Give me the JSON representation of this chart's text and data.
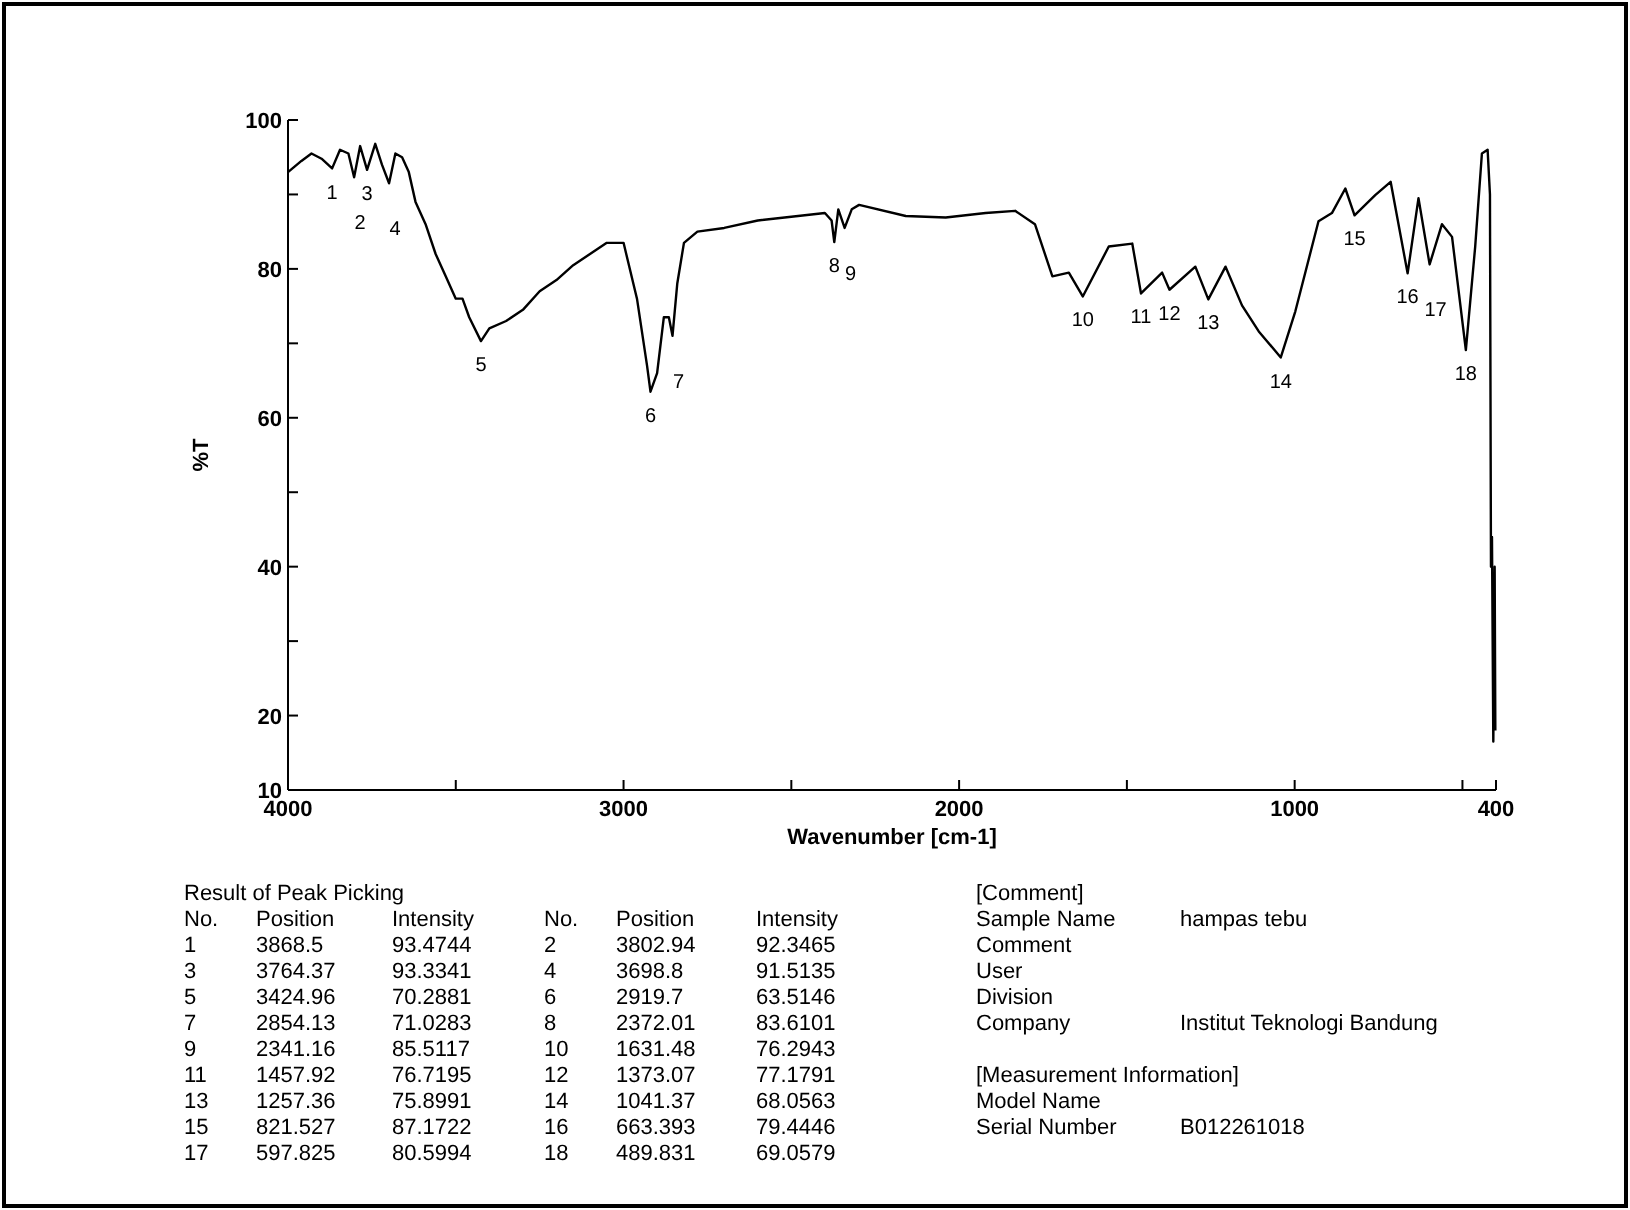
{
  "chart_data": {
    "type": "line",
    "xlabel": "Wavenumber [cm-1]",
    "ylabel": "%T",
    "xlim": [
      4000,
      400
    ],
    "ylim": [
      10,
      100
    ],
    "xticks": [
      4000,
      {
        "value": 3500,
        "label": null
      },
      3000,
      {
        "value": 2500,
        "label": null
      },
      2000,
      {
        "value": 1500,
        "label": null
      },
      1000,
      {
        "value": 500,
        "label": null
      },
      400
    ],
    "yticks": [
      10,
      20,
      {
        "value": 30,
        "label": null
      },
      40,
      {
        "value": 50,
        "label": null
      },
      60,
      {
        "value": 70,
        "label": null
      },
      80,
      {
        "value": 90,
        "label": null
      },
      100
    ],
    "grid": false,
    "marker": "none",
    "line_style": "solid",
    "series": [
      {
        "color": "#000000",
        "x": [
          4000,
          3960,
          3930,
          3900,
          3868.5,
          3845,
          3820,
          3802.94,
          3785,
          3764.37,
          3740,
          3720,
          3698.8,
          3680,
          3660,
          3640,
          3620,
          3590,
          3560,
          3530,
          3500,
          3480,
          3460,
          3424.96,
          3400,
          3350,
          3300,
          3250,
          3200,
          3150,
          3100,
          3050,
          3000,
          2960,
          2930,
          2919.7,
          2900,
          2880,
          2865,
          2854.13,
          2840,
          2820,
          2780,
          2700,
          2600,
          2500,
          2400,
          2380,
          2372.01,
          2360,
          2341.16,
          2320,
          2298,
          2159,
          2040,
          1921,
          1833,
          1774,
          1722,
          1673,
          1631.48,
          1554,
          1484,
          1457.92,
          1395,
          1373.07,
          1296,
          1257.36,
          1206,
          1157,
          1107,
          1041.37,
          998,
          929,
          889,
          849,
          821.527,
          760,
          714,
          663.393,
          631,
          597.825,
          561,
          531,
          489.831,
          462,
          442,
          425,
          418,
          415,
          412,
          408,
          404,
          402
        ],
        "values": [
          93,
          94.5,
          95.5,
          94.8,
          93.5,
          96,
          95.5,
          92.3,
          96.5,
          93.3,
          96.8,
          94,
          91.5,
          95.5,
          95,
          93,
          89,
          86,
          82,
          79,
          76,
          76,
          73.5,
          70.3,
          72,
          73,
          74.5,
          77,
          78.5,
          80.5,
          82,
          83.5,
          83.5,
          76,
          67,
          63.5,
          66,
          73.5,
          73.5,
          71,
          78,
          83.5,
          85,
          85.5,
          86.5,
          87,
          87.5,
          86.5,
          83.6,
          88,
          85.5,
          88,
          88.6,
          87.1,
          86.9,
          87.5,
          87.8,
          86,
          79,
          79.5,
          76.3,
          83,
          83.4,
          76.7,
          79.5,
          77.2,
          80.3,
          75.9,
          80.3,
          75.1,
          71.6,
          68.1,
          74.3,
          86.4,
          87.5,
          90.8,
          87.2,
          89.9,
          91.7,
          79.4,
          89.5,
          80.6,
          86,
          84.3,
          69.1,
          83,
          95.5,
          96,
          90,
          40,
          44,
          16.5,
          40,
          18
        ]
      }
    ],
    "annotations": [
      {
        "text": "1",
        "x": 3868.5,
        "y": 93.4744
      },
      {
        "text": "2",
        "x": 3802.94,
        "y": 92.3465
      },
      {
        "text": "3",
        "x": 3764.37,
        "y": 93.3341
      },
      {
        "text": "4",
        "x": 3698.8,
        "y": 91.5135
      },
      {
        "text": "5",
        "x": 3424.96,
        "y": 70.2881
      },
      {
        "text": "6",
        "x": 2919.7,
        "y": 63.5146
      },
      {
        "text": "7",
        "x": 2854.13,
        "y": 71.0283
      },
      {
        "text": "8",
        "x": 2372.01,
        "y": 83.6101
      },
      {
        "text": "9",
        "x": 2341.16,
        "y": 85.5117
      },
      {
        "text": "10",
        "x": 1631.48,
        "y": 76.2943
      },
      {
        "text": "11",
        "x": 1457.92,
        "y": 76.7195
      },
      {
        "text": "12",
        "x": 1373.07,
        "y": 77.1791
      },
      {
        "text": "13",
        "x": 1257.36,
        "y": 75.8991
      },
      {
        "text": "14",
        "x": 1041.37,
        "y": 68.0563
      },
      {
        "text": "15",
        "x": 821.527,
        "y": 87.1722
      },
      {
        "text": "16",
        "x": 663.393,
        "y": 79.4446
      },
      {
        "text": "17",
        "x": 597.825,
        "y": 80.5994
      },
      {
        "text": "18",
        "x": 489.831,
        "y": 69.0579
      },
      "Result of Peak Picking",
      "No.",
      "Position",
      "Intensity",
      "[Comment]",
      "Sample Name",
      "hampas tebu",
      "Comment",
      "User",
      "Division",
      "Company",
      "Institut Teknologi Bandung",
      "[Measurement Information]",
      "Model Name",
      "Serial Number",
      "B012261018",
      "3868.5",
      "93.4744",
      "3802.94",
      "92.3465",
      "3764.37",
      "93.3341",
      "3698.8",
      "91.5135",
      "3424.96",
      "70.2881",
      "2919.7",
      "63.5146",
      "2854.13",
      "71.0283",
      "2372.01",
      "83.6101",
      "2341.16",
      "85.5117",
      "1631.48",
      "76.2943",
      "1457.92",
      "76.7195",
      "1373.07",
      "77.1791",
      "1257.36",
      "75.8991",
      "1041.37",
      "68.0563",
      "821.527",
      "87.1722",
      "663.393",
      "79.4446",
      "597.825",
      "80.5994",
      "489.831",
      "69.0579"
    ]
  }
}
